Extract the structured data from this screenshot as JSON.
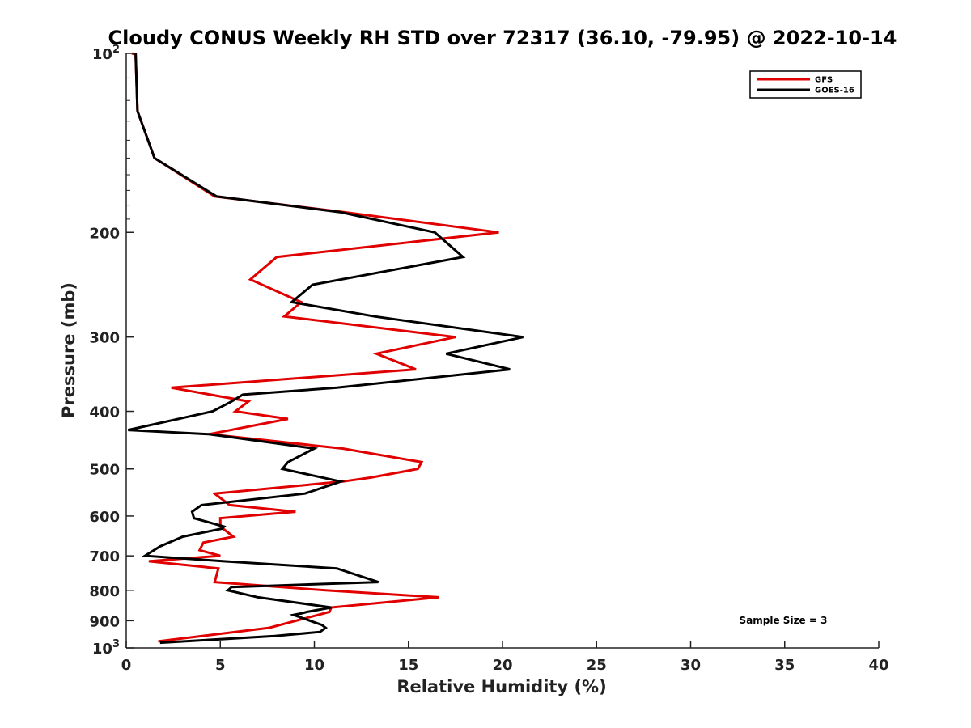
{
  "chart_data": {
    "type": "line",
    "title": "Cloudy CONUS Weekly RH STD over 72317 (36.10, -79.95) @ 2022-10-14",
    "xlabel": "Relative Humidity (%)",
    "ylabel": "Pressure (mb)",
    "xlim": [
      0,
      40
    ],
    "ylim": [
      100,
      1000
    ],
    "y_scale": "log",
    "y_reversed": true,
    "x_ticks": [
      "0",
      "5",
      "10",
      "15",
      "20",
      "25",
      "30",
      "35",
      "40"
    ],
    "y_ticks": [
      {
        "value": 100,
        "base": "10",
        "exp": "2"
      },
      {
        "value": 200,
        "label": "200"
      },
      {
        "value": 300,
        "label": "300"
      },
      {
        "value": 400,
        "label": "400"
      },
      {
        "value": 500,
        "label": "500"
      },
      {
        "value": 600,
        "label": "600"
      },
      {
        "value": 700,
        "label": "700"
      },
      {
        "value": 800,
        "label": "800"
      },
      {
        "value": 900,
        "label": "900"
      },
      {
        "value": 1000,
        "base": "10",
        "exp": "3"
      }
    ],
    "grid": false,
    "legend_position": "top-right",
    "annotation": "Sample Size = 3",
    "series": [
      {
        "name": "GFS",
        "color": "#e00000",
        "points": [
          [
            0.3,
            100
          ],
          [
            0.5,
            100.5
          ],
          [
            0.6,
            125
          ],
          [
            1.5,
            150
          ],
          [
            4.7,
            174
          ],
          [
            11.6,
            185
          ],
          [
            19.8,
            200
          ],
          [
            8.0,
            220
          ],
          [
            6.6,
            240
          ],
          [
            9.3,
            262
          ],
          [
            8.4,
            277
          ],
          [
            17.5,
            300
          ],
          [
            13.3,
            320
          ],
          [
            15.4,
            340
          ],
          [
            2.4,
            365
          ],
          [
            6.5,
            385
          ],
          [
            5.8,
            400
          ],
          [
            8.6,
            412
          ],
          [
            4.4,
            437
          ],
          [
            11.5,
            462
          ],
          [
            15.7,
            487
          ],
          [
            15.5,
            500
          ],
          [
            13.0,
            517
          ],
          [
            11.5,
            525
          ],
          [
            4.7,
            550
          ],
          [
            5.5,
            575
          ],
          [
            9.0,
            590
          ],
          [
            5.0,
            605
          ],
          [
            5.0,
            625
          ],
          [
            5.7,
            650
          ],
          [
            4.1,
            665
          ],
          [
            3.9,
            685
          ],
          [
            5.0,
            700
          ],
          [
            1.2,
            715
          ],
          [
            4.9,
            735
          ],
          [
            4.7,
            775
          ],
          [
            10.6,
            800
          ],
          [
            16.6,
            822
          ],
          [
            10.9,
            855
          ],
          [
            10.8,
            870
          ],
          [
            7.6,
            925
          ],
          [
            1.7,
            975
          ]
        ]
      },
      {
        "name": "GOES-16",
        "color": "#000000",
        "points": [
          [
            0.5,
            100
          ],
          [
            0.6,
            125
          ],
          [
            1.5,
            150
          ],
          [
            4.8,
            174
          ],
          [
            11.4,
            185
          ],
          [
            16.4,
            200
          ],
          [
            17.9,
            220
          ],
          [
            9.9,
            245
          ],
          [
            8.8,
            262
          ],
          [
            13.2,
            277
          ],
          [
            21.1,
            300
          ],
          [
            17.0,
            320
          ],
          [
            20.4,
            340
          ],
          [
            11.2,
            365
          ],
          [
            6.2,
            375
          ],
          [
            5.6,
            385
          ],
          [
            4.6,
            400
          ],
          [
            0.1,
            430
          ],
          [
            4.4,
            437
          ],
          [
            10.0,
            462
          ],
          [
            8.6,
            487
          ],
          [
            8.3,
            500
          ],
          [
            11.4,
            525
          ],
          [
            9.5,
            550
          ],
          [
            4.0,
            575
          ],
          [
            3.5,
            590
          ],
          [
            3.6,
            605
          ],
          [
            5.2,
            625
          ],
          [
            5.1,
            630
          ],
          [
            3.0,
            650
          ],
          [
            1.8,
            675
          ],
          [
            1.0,
            700
          ],
          [
            5.2,
            715
          ],
          [
            11.2,
            735
          ],
          [
            13.4,
            775
          ],
          [
            5.6,
            790
          ],
          [
            5.4,
            800
          ],
          [
            7.0,
            822
          ],
          [
            10.9,
            855
          ],
          [
            9.6,
            870
          ],
          [
            9.3,
            875
          ],
          [
            8.9,
            880
          ],
          [
            10.4,
            915
          ],
          [
            10.6,
            925
          ],
          [
            10.3,
            940
          ],
          [
            7.9,
            955
          ],
          [
            1.8,
            980
          ]
        ]
      }
    ]
  }
}
